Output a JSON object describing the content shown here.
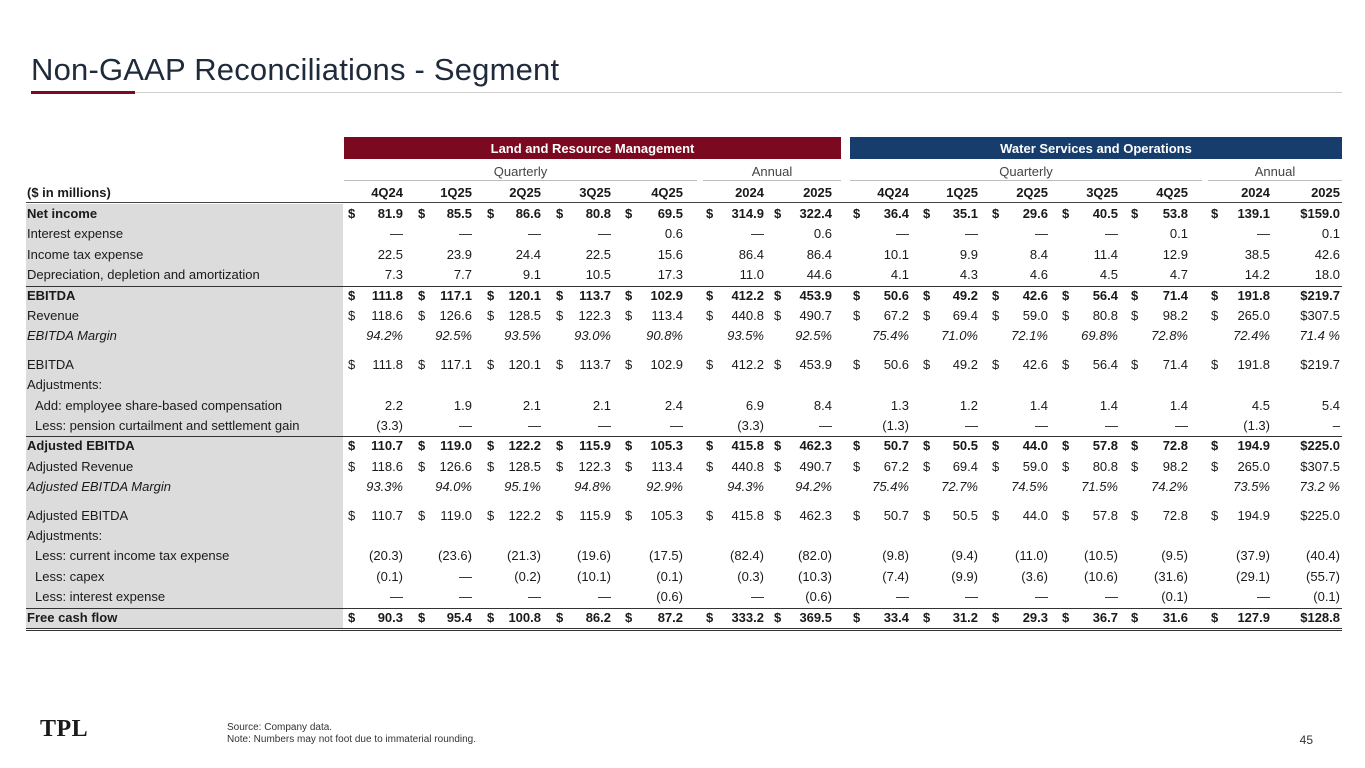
{
  "title": "Non-GAAP Reconciliations - Segment",
  "segments": {
    "land": "Land and Resource Management",
    "water": "Water Services and Operations"
  },
  "groups": {
    "quarterly": "Quarterly",
    "annual": "Annual"
  },
  "header_label": "($ in millions)",
  "columns": [
    "4Q24",
    "1Q25",
    "2Q25",
    "3Q25",
    "4Q25",
    "2024",
    "2025",
    "4Q24",
    "1Q25",
    "2Q25",
    "3Q25",
    "4Q25",
    "2024",
    "2025"
  ],
  "rows": [
    {
      "label": "Net income",
      "style": "bold",
      "dollar": true,
      "values": [
        "81.9",
        "85.5",
        "86.6",
        "80.8",
        "69.5",
        "314.9",
        "322.4",
        "36.4",
        "35.1",
        "29.6",
        "40.5",
        "53.8",
        "139.1",
        "$159.0"
      ]
    },
    {
      "label": "Interest expense",
      "values": [
        "—",
        "—",
        "—",
        "—",
        "0.6",
        "—",
        "0.6",
        "—",
        "—",
        "—",
        "—",
        "0.1",
        "—",
        "0.1"
      ]
    },
    {
      "label": "Income tax expense",
      "values": [
        "22.5",
        "23.9",
        "24.4",
        "22.5",
        "15.6",
        "86.4",
        "86.4",
        "10.1",
        "9.9",
        "8.4",
        "11.4",
        "12.9",
        "38.5",
        "42.6"
      ]
    },
    {
      "label": "Depreciation, depletion and amortization",
      "values": [
        "7.3",
        "7.7",
        "9.1",
        "10.5",
        "17.3",
        "11.0",
        "44.6",
        "4.1",
        "4.3",
        "4.6",
        "4.5",
        "4.7",
        "14.2",
        "18.0"
      ]
    },
    {
      "label": "EBITDA",
      "style": "bold",
      "dollar": true,
      "rule": "thin",
      "values": [
        "111.8",
        "117.1",
        "120.1",
        "113.7",
        "102.9",
        "412.2",
        "453.9",
        "50.6",
        "49.2",
        "42.6",
        "56.4",
        "71.4",
        "191.8",
        "$219.7"
      ]
    },
    {
      "label": "Revenue",
      "dollar": true,
      "values": [
        "118.6",
        "126.6",
        "128.5",
        "122.3",
        "113.4",
        "440.8",
        "490.7",
        "67.2",
        "69.4",
        "59.0",
        "80.8",
        "98.2",
        "265.0",
        "$307.5"
      ]
    },
    {
      "label": "EBITDA Margin",
      "style": "ital",
      "values": [
        "94.2%",
        "92.5%",
        "93.5%",
        "93.0%",
        "90.8%",
        "93.5%",
        "92.5%",
        "75.4%",
        "71.0%",
        "72.1%",
        "69.8%",
        "72.8%",
        "72.4%",
        "71.4 %"
      ]
    },
    {
      "label": "EBITDA",
      "dollar": true,
      "gap": true,
      "values": [
        "111.8",
        "117.1",
        "120.1",
        "113.7",
        "102.9",
        "412.2",
        "453.9",
        "50.6",
        "49.2",
        "42.6",
        "56.4",
        "71.4",
        "191.8",
        "$219.7"
      ]
    },
    {
      "label": "Adjustments:",
      "values": [
        "",
        "",
        "",
        "",
        "",
        "",
        "",
        "",
        "",
        "",
        "",
        "",
        "",
        ""
      ]
    },
    {
      "label": "Add: employee share-based compensation",
      "indent": true,
      "values": [
        "2.2",
        "1.9",
        "2.1",
        "2.1",
        "2.4",
        "6.9",
        "8.4",
        "1.3",
        "1.2",
        "1.4",
        "1.4",
        "1.4",
        "4.5",
        "5.4"
      ]
    },
    {
      "label": "Less: pension curtailment and settlement gain",
      "indent": true,
      "values": [
        "(3.3)",
        "—",
        "—",
        "—",
        "—",
        "(3.3)",
        "—",
        "(1.3)",
        "—",
        "—",
        "—",
        "—",
        "(1.3)",
        "–"
      ]
    },
    {
      "label": "Adjusted EBITDA",
      "style": "bold",
      "dollar": true,
      "rule": "thin",
      "values": [
        "110.7",
        "119.0",
        "122.2",
        "115.9",
        "105.3",
        "415.8",
        "462.3",
        "50.7",
        "50.5",
        "44.0",
        "57.8",
        "72.8",
        "194.9",
        "$225.0"
      ]
    },
    {
      "label": "Adjusted Revenue",
      "dollar": true,
      "values": [
        "118.6",
        "126.6",
        "128.5",
        "122.3",
        "113.4",
        "440.8",
        "490.7",
        "67.2",
        "69.4",
        "59.0",
        "80.8",
        "98.2",
        "265.0",
        "$307.5"
      ]
    },
    {
      "label": "Adjusted EBITDA Margin",
      "style": "ital",
      "values": [
        "93.3%",
        "94.0%",
        "95.1%",
        "94.8%",
        "92.9%",
        "94.3%",
        "94.2%",
        "75.4%",
        "72.7%",
        "74.5%",
        "71.5%",
        "74.2%",
        "73.5%",
        "73.2 %"
      ]
    },
    {
      "label": "Adjusted EBITDA",
      "dollar": true,
      "gap": true,
      "values": [
        "110.7",
        "119.0",
        "122.2",
        "115.9",
        "105.3",
        "415.8",
        "462.3",
        "50.7",
        "50.5",
        "44.0",
        "57.8",
        "72.8",
        "194.9",
        "$225.0"
      ]
    },
    {
      "label": "Adjustments:",
      "values": [
        "",
        "",
        "",
        "",
        "",
        "",
        "",
        "",
        "",
        "",
        "",
        "",
        "",
        ""
      ]
    },
    {
      "label": "Less: current income tax expense",
      "indent": true,
      "values": [
        "(20.3)",
        "(23.6)",
        "(21.3)",
        "(19.6)",
        "(17.5)",
        "(82.4)",
        "(82.0)",
        "(9.8)",
        "(9.4)",
        "(11.0)",
        "(10.5)",
        "(9.5)",
        "(37.9)",
        "(40.4)"
      ]
    },
    {
      "label": "Less: capex",
      "indent": true,
      "values": [
        "(0.1)",
        "—",
        "(0.2)",
        "(10.1)",
        "(0.1)",
        "(0.3)",
        "(10.3)",
        "(7.4)",
        "(9.9)",
        "(3.6)",
        "(10.6)",
        "(31.6)",
        "(29.1)",
        "(55.7)"
      ]
    },
    {
      "label": "Less: interest expense",
      "indent": true,
      "values": [
        "—",
        "—",
        "—",
        "—",
        "(0.6)",
        "—",
        "(0.6)",
        "—",
        "—",
        "—",
        "—",
        "(0.1)",
        "—",
        "(0.1)"
      ]
    },
    {
      "label": "Free cash flow",
      "style": "bold",
      "dollar": true,
      "rule": "thin",
      "dbl": true,
      "values": [
        "90.3",
        "95.4",
        "100.8",
        "86.2",
        "87.2",
        "333.2",
        "369.5",
        "33.4",
        "31.2",
        "29.3",
        "36.7",
        "31.6",
        "127.9",
        "$128.8"
      ]
    }
  ],
  "footer": {
    "logo": "TPL",
    "source": "Source: Company data.",
    "note": "Note: Numbers may not foot due to immaterial rounding.",
    "page": "45"
  }
}
